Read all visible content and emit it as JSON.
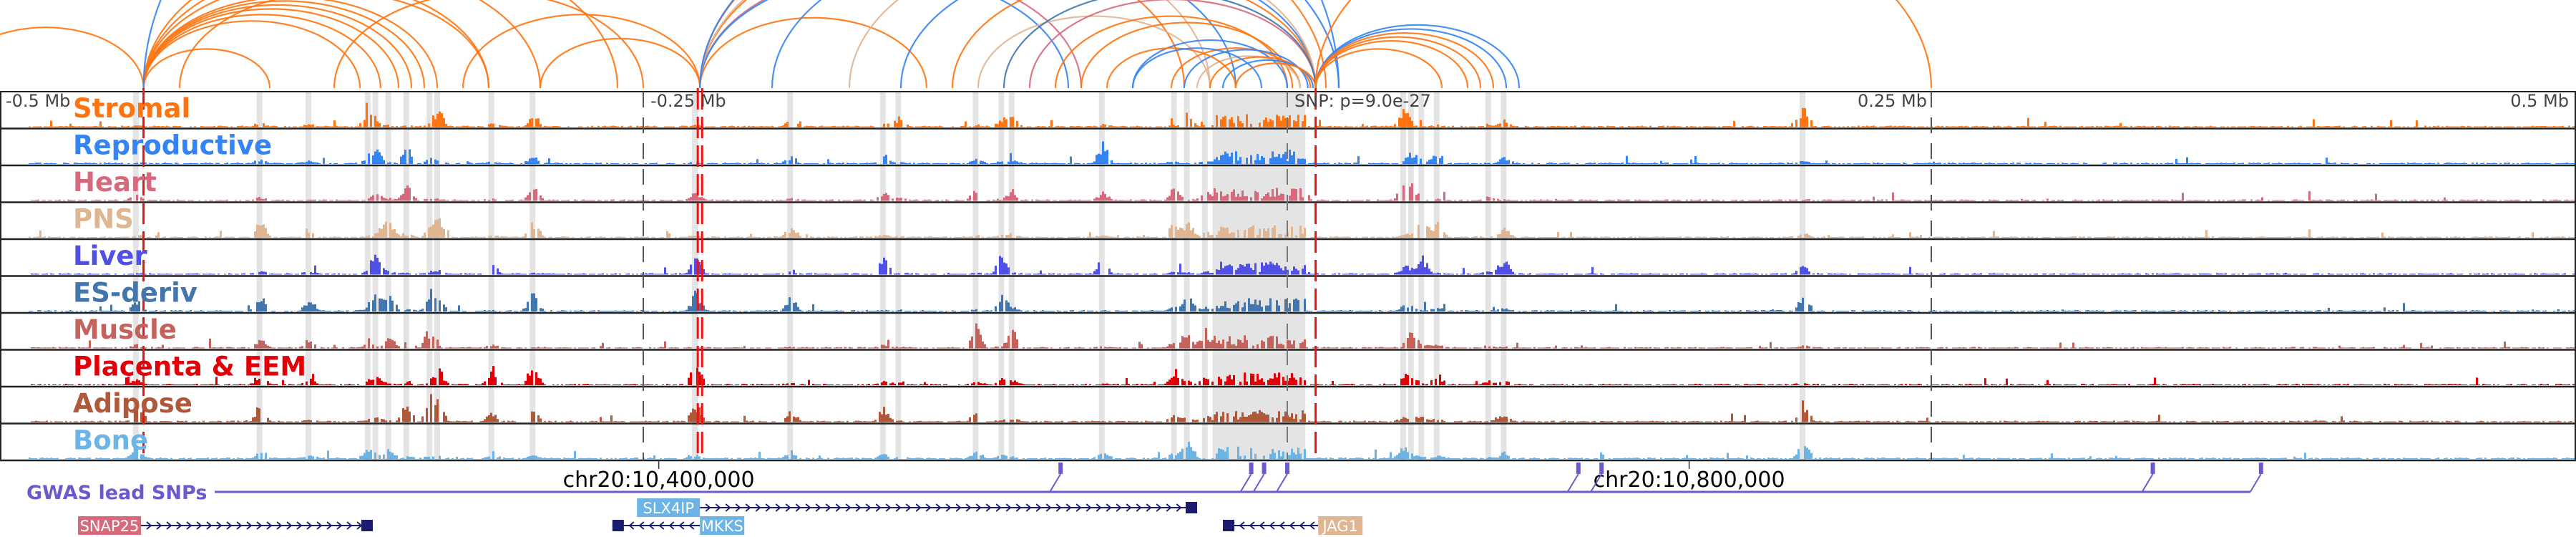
{
  "axis": {
    "ticks": [
      {
        "kb": -500,
        "label": "-0.5 Mb",
        "anchor": "start"
      },
      {
        "kb": -250,
        "label": "-0.25 Mb",
        "anchor": "start"
      },
      {
        "kb": 250,
        "label": "0.25 Mb",
        "anchor": "end"
      },
      {
        "kb": 500,
        "label": "0.5 Mb",
        "anchor": "end"
      }
    ],
    "snp_label": "SNP: p=9.0e-27",
    "coords": [
      {
        "kb": -244,
        "label": "chr20:10,400,000"
      },
      {
        "kb": 156,
        "label": "chr20:10,800,000"
      }
    ]
  },
  "tracks": [
    {
      "name": "Stromal",
      "color": "#ff7410"
    },
    {
      "name": "Reproductive",
      "color": "#3584f5"
    },
    {
      "name": "Heart",
      "color": "#d66a7c"
    },
    {
      "name": "PNS",
      "color": "#dfb592"
    },
    {
      "name": "Liver",
      "color": "#5050e6"
    },
    {
      "name": "ES-deriv",
      "color": "#4276ad"
    },
    {
      "name": "Muscle",
      "color": "#c6625c"
    },
    {
      "name": "Placenta & EEM",
      "color": "#e20008"
    },
    {
      "name": "Adipose",
      "color": "#b0583a"
    },
    {
      "name": "Bone",
      "color": "#6cb4e6"
    }
  ],
  "highlight_bands_kb": [
    -447,
    -399,
    -380,
    -357,
    -354,
    -349,
    -342,
    -333,
    -330,
    -309,
    -293,
    -230,
    -193,
    -157,
    -151,
    -121,
    -111,
    -107,
    -72,
    -44,
    -39,
    -32,
    45,
    48,
    52,
    58,
    78,
    84,
    200
  ],
  "shaded_region_kb": [
    -29,
    7
  ],
  "red_lines_kb": [
    -444,
    -228,
    11
  ],
  "snp_kb": 0,
  "arcs": [
    [
      -520,
      -444,
      0
    ],
    [
      -444,
      -395,
      0
    ],
    [
      -444,
      -360,
      0
    ],
    [
      -444,
      -352,
      0
    ],
    [
      -444,
      -345,
      0
    ],
    [
      -444,
      -340,
      0
    ],
    [
      -444,
      -335,
      0
    ],
    [
      -444,
      -330,
      0
    ],
    [
      -444,
      -310,
      0
    ],
    [
      -444,
      -290,
      0
    ],
    [
      -444,
      -260,
      0
    ],
    [
      -444,
      20,
      1
    ],
    [
      -430,
      -310,
      0
    ],
    [
      -370,
      -250,
      0
    ],
    [
      -320,
      -228,
      0
    ],
    [
      -290,
      -228,
      0
    ],
    [
      -228,
      -140,
      0
    ],
    [
      -228,
      -40,
      0
    ],
    [
      -228,
      -80,
      2
    ],
    [
      -228,
      -85,
      1
    ],
    [
      -228,
      -30,
      3
    ],
    [
      -228,
      15,
      0
    ],
    [
      -228,
      20,
      1
    ],
    [
      -120,
      -30,
      3
    ],
    [
      -200,
      -20,
      1
    ],
    [
      -90,
      0,
      0
    ],
    [
      -80,
      2,
      0
    ],
    [
      -60,
      0,
      1
    ],
    [
      -45,
      5,
      0
    ],
    [
      -40,
      8,
      1
    ],
    [
      -35,
      5,
      3
    ],
    [
      -30,
      9,
      0
    ],
    [
      -25,
      10,
      1
    ],
    [
      -20,
      11,
      0
    ],
    [
      -150,
      11,
      1
    ],
    [
      -100,
      11,
      2
    ],
    [
      -130,
      11,
      0
    ],
    [
      -170,
      11,
      3
    ],
    [
      -110,
      11,
      5
    ],
    [
      11,
      60,
      0
    ],
    [
      11,
      70,
      0
    ],
    [
      11,
      75,
      0
    ],
    [
      11,
      85,
      1
    ],
    [
      11,
      90,
      1
    ],
    [
      11,
      80,
      0
    ],
    [
      11,
      250,
      0
    ],
    [
      -70,
      -20,
      0
    ],
    [
      -60,
      -10,
      1
    ]
  ],
  "gwas": {
    "label": "GWAS lead SNPs",
    "snps_kb": [
      -88,
      -14,
      -9,
      0,
      113,
      122,
      336,
      378
    ],
    "color": "#6a5acd"
  },
  "genes": [
    {
      "name": "SNAP25",
      "start": -445,
      "end": -355,
      "strand": "+",
      "row": 1,
      "color": "#d66a7c"
    },
    {
      "name": "SLX4IP",
      "start": -228,
      "end": -35,
      "strand": "+",
      "row": 0,
      "color": "#6cb4e6"
    },
    {
      "name": "MKKS",
      "start": -262,
      "end": -228,
      "strand": "-",
      "row": 1,
      "color": "#6cb4e6"
    },
    {
      "name": "JAG1",
      "start": -25,
      "end": 12,
      "strand": "-",
      "row": 1,
      "color": "#dfb592"
    }
  ]
}
